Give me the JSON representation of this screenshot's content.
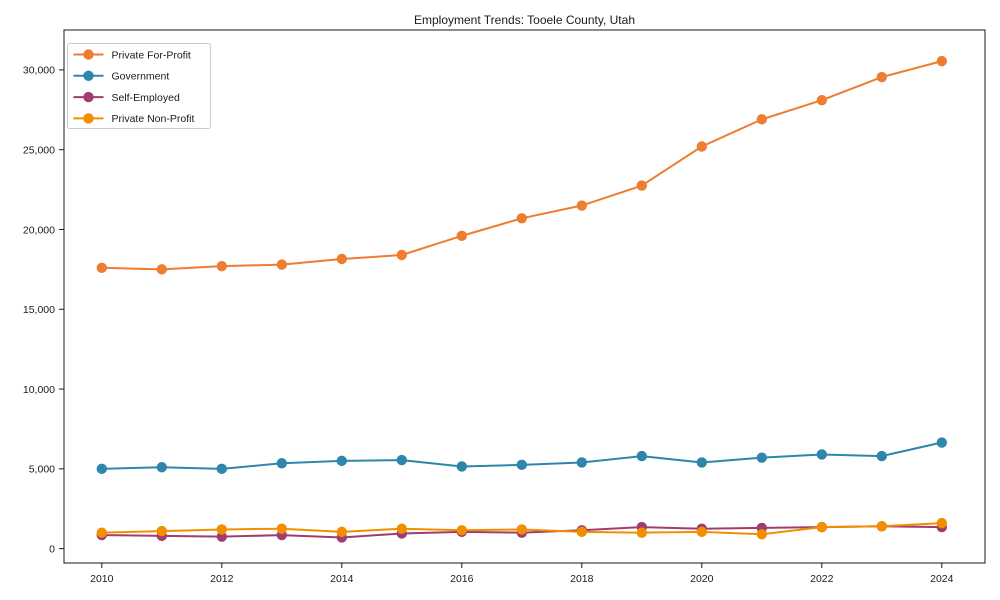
{
  "chart_data": {
    "type": "line",
    "title": "Employment Trends: Tooele County, Utah",
    "xlabel": "",
    "ylabel": "",
    "x": [
      2010,
      2011,
      2012,
      2013,
      2014,
      2015,
      2016,
      2017,
      2018,
      2019,
      2020,
      2021,
      2022,
      2023,
      2024
    ],
    "series": [
      {
        "name": "Private For-Profit",
        "color": "#ED7D31",
        "values": [
          17600,
          17500,
          17700,
          17800,
          18150,
          18400,
          19600,
          20700,
          21500,
          22750,
          25200,
          26900,
          28100,
          29550,
          30550
        ]
      },
      {
        "name": "Government",
        "color": "#2E86AB",
        "values": [
          5000,
          5100,
          5000,
          5350,
          5500,
          5550,
          5150,
          5250,
          5400,
          5800,
          5400,
          5700,
          5900,
          5800,
          6650
        ]
      },
      {
        "name": "Self-Employed",
        "color": "#A23B72",
        "values": [
          850,
          800,
          750,
          850,
          700,
          950,
          1050,
          1000,
          1150,
          1350,
          1250,
          1300,
          1350,
          1400,
          1350
        ]
      },
      {
        "name": "Private Non-Profit",
        "color": "#F18F01",
        "values": [
          1000,
          1100,
          1200,
          1250,
          1050,
          1250,
          1150,
          1200,
          1050,
          1000,
          1050,
          900,
          1350,
          1400,
          1600
        ]
      }
    ],
    "xticks": [
      2010,
      2012,
      2014,
      2016,
      2018,
      2020,
      2022,
      2024
    ],
    "yticks": [
      0,
      5000,
      10000,
      15000,
      20000,
      25000,
      30000
    ],
    "ytick_labels": [
      "0",
      "5,000",
      "10,000",
      "15,000",
      "20,000",
      "25,000",
      "30,000"
    ],
    "xlim": [
      2009.37,
      2024.72
    ],
    "ylim": [
      -900,
      32500
    ],
    "grid": false,
    "legend": {
      "position": "upper-left",
      "entries": [
        "Private For-Profit",
        "Government",
        "Self-Employed",
        "Private Non-Profit"
      ]
    },
    "colors": {
      "background": "#ffffff",
      "spine": "#1a1a1a",
      "tick_label": "#1a1a1a",
      "legend_border": "#cccccc",
      "legend_background": "#ffffff"
    }
  }
}
